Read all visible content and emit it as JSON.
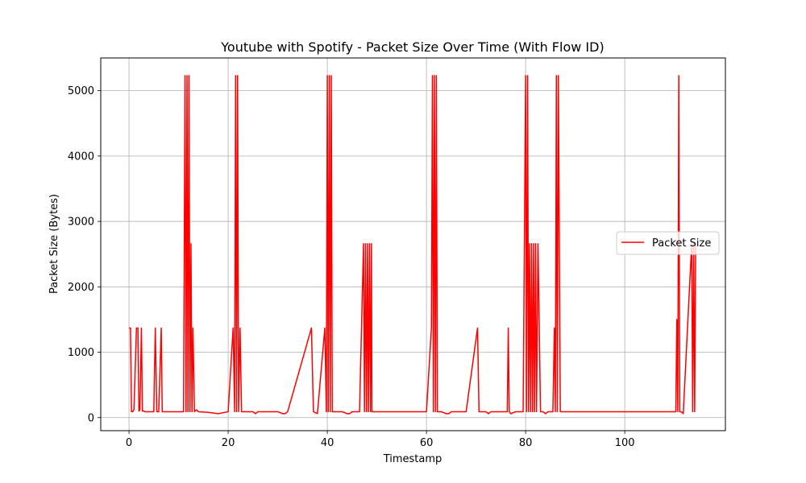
{
  "chart_data": {
    "type": "line",
    "title": "Youtube with Spotify - Packet Size Over Time (With Flow ID)",
    "xlabel": "Timestamp",
    "ylabel": "Packet Size (Bytes)",
    "xlim": [
      -5.7,
      120.3
    ],
    "ylim": [
      -200,
      5500
    ],
    "xticks": [
      0,
      20,
      40,
      60,
      80,
      100
    ],
    "yticks": [
      0,
      1000,
      2000,
      3000,
      4000,
      5000
    ],
    "grid": true,
    "legend_position": "center-right",
    "series": [
      {
        "name": "Packet Size",
        "color": "#ff0000",
        "x": [
          0.0,
          0.3,
          0.5,
          0.7,
          1.0,
          1.5,
          1.8,
          2.0,
          2.2,
          2.5,
          2.7,
          3.0,
          3.2,
          3.5,
          4.0,
          4.5,
          5.0,
          5.3,
          5.6,
          6.0,
          6.5,
          6.7,
          7.0,
          8.0,
          10.0,
          11.0,
          11.3,
          11.5,
          11.7,
          11.9,
          12.1,
          12.3,
          12.5,
          12.7,
          12.9,
          13.2,
          13.6,
          14.0,
          16.0,
          18.0,
          20.0,
          21.0,
          21.3,
          21.5,
          21.7,
          21.9,
          22.1,
          22.4,
          22.7,
          23.0,
          24.0,
          25.0,
          25.5,
          26.0,
          28.0,
          30.0,
          31.0,
          31.5,
          32.0,
          36.8,
          37.2,
          38.0,
          39.5,
          39.8,
          40.0,
          40.2,
          40.4,
          40.6,
          40.8,
          41.0,
          42.0,
          43.0,
          44.0,
          44.5,
          45.0,
          46.0,
          46.5,
          47.3,
          47.5,
          47.7,
          47.9,
          48.1,
          48.3,
          48.5,
          48.7,
          48.9,
          49.0,
          50.0,
          55.0,
          60.0,
          61.0,
          61.2,
          61.4,
          61.6,
          61.8,
          62.0,
          62.2,
          63.0,
          64.0,
          64.5,
          65.0,
          68.0,
          70.3,
          70.6,
          72.0,
          72.5,
          73.0,
          75.0,
          76.3,
          76.5,
          76.7,
          77.0,
          78.0,
          79.5,
          80.0,
          80.2,
          80.4,
          80.6,
          80.8,
          81.0,
          81.2,
          81.4,
          81.6,
          81.8,
          82.0,
          82.2,
          82.5,
          83.0,
          83.5,
          84.0,
          84.5,
          85.5,
          85.8,
          86.0,
          86.2,
          86.4,
          86.6,
          87.0,
          90.0,
          94.0,
          98.0,
          100.0,
          106.5,
          110.3,
          110.5,
          110.7,
          110.9,
          111.1,
          111.4,
          111.8,
          113.5,
          113.7,
          113.9,
          114.1,
          114.3
        ],
        "y": [
          1370,
          1370,
          90,
          90,
          120,
          1370,
          1370,
          100,
          120,
          1370,
          100,
          100,
          90,
          90,
          90,
          90,
          90,
          1370,
          90,
          90,
          1370,
          90,
          90,
          90,
          90,
          90,
          5230,
          90,
          5230,
          90,
          5230,
          90,
          2660,
          90,
          1370,
          90,
          120,
          90,
          80,
          60,
          90,
          1370,
          90,
          5230,
          90,
          5230,
          90,
          1370,
          90,
          90,
          90,
          90,
          60,
          90,
          90,
          90,
          60,
          60,
          90,
          1370,
          90,
          60,
          1370,
          90,
          5230,
          90,
          5230,
          90,
          5230,
          90,
          90,
          90,
          60,
          60,
          90,
          90,
          90,
          2660,
          90,
          2660,
          90,
          2660,
          90,
          2660,
          90,
          2660,
          90,
          90,
          90,
          90,
          1370,
          5230,
          90,
          5230,
          90,
          5230,
          90,
          90,
          60,
          60,
          90,
          90,
          1370,
          90,
          90,
          60,
          90,
          90,
          90,
          1370,
          90,
          60,
          90,
          90,
          5230,
          90,
          5230,
          90,
          2660,
          90,
          2660,
          90,
          2660,
          90,
          2660,
          90,
          2660,
          90,
          90,
          60,
          90,
          90,
          1370,
          90,
          5230,
          90,
          5230,
          90,
          90,
          90,
          90,
          90,
          90,
          90,
          1500,
          90,
          5230,
          90,
          90,
          60,
          2660,
          90,
          2660,
          90,
          2660
        ]
      }
    ]
  }
}
